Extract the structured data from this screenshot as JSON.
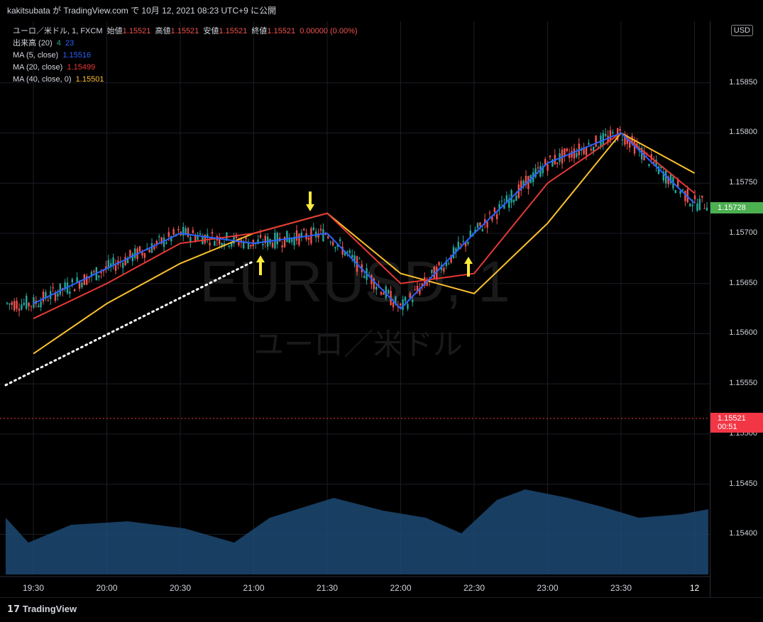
{
  "header": {
    "publish_line": "kakitsubata が TradingView.com で 10月 12, 2021 08:23 UTC+9 に公開"
  },
  "legend": {
    "symbol": "ユーロ／米ドル, 1, FXCM",
    "open_label": "始値",
    "open": "1.15521",
    "high_label": "高値",
    "high": "1.15521",
    "low_label": "安値",
    "low": "1.15521",
    "close_label": "終値",
    "close": "1.15521",
    "change": "0.00000 (0.00%)",
    "volume_label": "出来高 (20)",
    "volume_up": "4",
    "volume_down": "23",
    "ma5_label": "MA (5, close)",
    "ma5_value": "1.15516",
    "ma20_label": "MA (20, close)",
    "ma20_value": "1.15499",
    "ma40_label": "MA (40, close, 0)",
    "ma40_value": "1.15501"
  },
  "watermark": {
    "symbol": "EURUSD, 1",
    "description": "ユーロ／米ドル"
  },
  "axis": {
    "currency": "USD",
    "y_ticks": [
      "1.15850",
      "1.15800",
      "1.15750",
      "1.15700",
      "1.15650",
      "1.15600",
      "1.15550",
      "1.15500",
      "1.15450",
      "1.15400"
    ],
    "current_price": "1.15728",
    "last_price": "1.15521",
    "countdown": "00:51",
    "x_ticks": [
      "19:30",
      "20:00",
      "20:30",
      "21:00",
      "21:30",
      "22:00",
      "22:30",
      "23:00",
      "23:30",
      "12"
    ]
  },
  "footer": {
    "brand": "TradingView"
  },
  "colors": {
    "ma5": "#2962ff",
    "ma20": "#e53935",
    "ma40": "#fbc02d",
    "up_candle": "#26a69a",
    "down_candle": "#ef5350",
    "current_price": "#4caf50",
    "last_price": "#f23645",
    "volume": "#1e4d7a",
    "arrow": "#ffeb3b"
  },
  "chart_data": {
    "type": "line",
    "title": "EURUSD, 1",
    "ylim": [
      1.1536,
      1.159
    ],
    "x": [
      "19:30",
      "20:00",
      "20:30",
      "21:00",
      "21:30",
      "22:00",
      "22:30",
      "23:00",
      "23:30",
      "00:00"
    ],
    "series": [
      {
        "name": "MA (5, close)",
        "values": [
          1.1563,
          1.15665,
          1.157,
          1.1569,
          1.157,
          1.15625,
          1.157,
          1.1577,
          1.158,
          1.1573
        ]
      },
      {
        "name": "MA (20, close)",
        "values": [
          1.15615,
          1.1565,
          1.1569,
          1.157,
          1.1572,
          1.1565,
          1.1566,
          1.1575,
          1.158,
          1.1574
        ]
      },
      {
        "name": "MA (40, close, 0)",
        "values": [
          1.1558,
          1.1563,
          1.1567,
          1.157,
          1.1572,
          1.1566,
          1.1564,
          1.1571,
          1.158,
          1.1576
        ]
      }
    ]
  }
}
